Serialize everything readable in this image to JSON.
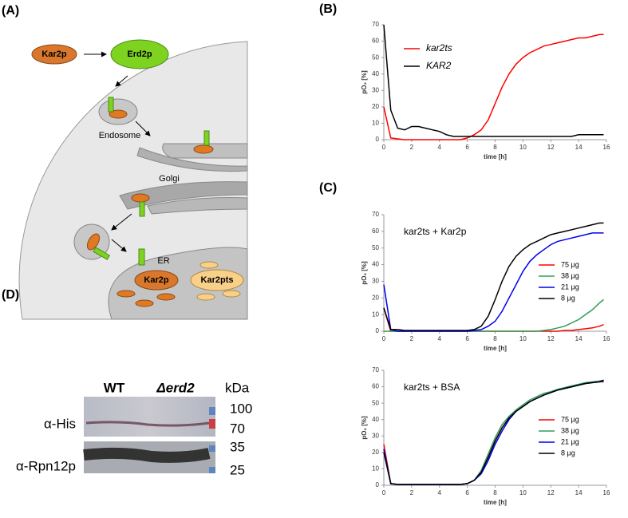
{
  "panels": {
    "a": "(A)",
    "b": "(B)",
    "c": "(C)",
    "d": "(D)"
  },
  "diagram": {
    "kar2p": "Kar2p",
    "erd2p": "Erd2p",
    "endosome": "Endosome",
    "golgi": "Golgi",
    "er": "ER",
    "er_kar2p": "Kar2p",
    "er_kar2pts": "Kar2pts"
  },
  "blot": {
    "lanes": [
      "WT",
      "Δerd2"
    ],
    "unit": "kDa",
    "antibodies": [
      "α-His",
      "α-Rpn12p"
    ],
    "markers": [
      "100",
      "70",
      "35",
      "25"
    ]
  },
  "chart_data": [
    {
      "type": "line",
      "xlabel": "time  [h]",
      "ylabel": "pO₂ [%]",
      "legend": "upper left",
      "x": [
        0,
        0.5,
        1,
        1.5,
        2,
        2.5,
        3,
        3.5,
        4,
        4.5,
        5,
        5.5,
        6,
        6.5,
        7,
        7.5,
        8,
        8.5,
        9,
        9.5,
        10,
        10.5,
        11,
        11.5,
        12,
        12.5,
        13,
        13.5,
        14,
        14.5,
        15,
        15.5,
        15.8
      ],
      "series": [
        {
          "name": "kar2ts",
          "color": "#ff0000",
          "values": [
            20,
            1,
            0.5,
            0,
            0,
            0,
            0,
            0,
            0,
            0,
            0,
            0,
            1,
            3,
            6,
            12,
            22,
            32,
            40,
            46,
            50,
            53,
            55,
            57,
            58,
            59,
            60,
            61,
            62,
            62,
            63,
            64,
            64
          ]
        },
        {
          "name": "KAR2",
          "color": "#000000",
          "values": [
            70,
            18,
            7,
            6,
            8,
            8,
            7,
            6,
            5,
            3,
            2,
            2,
            2,
            2,
            2,
            2,
            2,
            2,
            2,
            2,
            2,
            2,
            2,
            2,
            2,
            2,
            2,
            2,
            3,
            3,
            3,
            3,
            3
          ]
        }
      ],
      "xlim": [
        0,
        16
      ],
      "xticks": [
        0,
        2,
        4,
        6,
        8,
        10,
        12,
        14,
        16
      ],
      "ylim": [
        0,
        70
      ],
      "yticks": [
        0,
        10,
        20,
        30,
        40,
        50,
        60,
        70
      ]
    },
    {
      "type": "line",
      "annotation": "kar2ts + Kar2p",
      "xlabel": "time [h]",
      "ylabel": "pO₂ [%]",
      "legend": "center right",
      "x": [
        0,
        0.5,
        1,
        1.5,
        2,
        2.5,
        3,
        3.5,
        4,
        4.5,
        5,
        5.5,
        6,
        6.5,
        7,
        7.5,
        8,
        8.5,
        9,
        9.5,
        10,
        10.5,
        11,
        11.5,
        12,
        12.5,
        13,
        13.5,
        14,
        14.5,
        15,
        15.5,
        15.8
      ],
      "series": [
        {
          "name": "75 µg",
          "color": "#ff0000",
          "values": [
            14,
            0,
            0,
            0,
            0,
            0,
            0,
            0,
            0,
            0,
            0,
            0,
            0,
            0,
            0,
            0,
            0,
            0,
            0,
            0,
            0,
            0,
            0,
            0,
            0,
            0,
            0.5,
            0.5,
            1,
            1.5,
            2,
            3,
            4
          ]
        },
        {
          "name": "38 µg",
          "color": "#2e9e5b",
          "values": [
            0,
            0,
            0,
            0,
            0,
            0,
            0,
            0,
            0,
            0,
            0,
            0,
            0,
            0,
            0,
            0,
            0,
            0,
            0,
            0,
            0,
            0,
            0,
            0.5,
            1,
            2,
            3,
            5,
            7,
            10,
            13,
            17,
            19
          ]
        },
        {
          "name": "21 µg",
          "color": "#0000ee",
          "values": [
            28,
            1,
            0,
            0,
            0,
            0,
            0,
            0,
            0,
            0,
            0,
            0,
            0,
            0.5,
            1,
            3,
            6,
            12,
            20,
            28,
            36,
            42,
            46,
            49,
            52,
            54,
            55,
            56,
            57,
            58,
            59,
            59,
            59
          ]
        },
        {
          "name": "8 µg",
          "color": "#000000",
          "values": [
            14,
            1,
            1,
            0.5,
            0.5,
            0.5,
            0.5,
            0.5,
            0.5,
            0.5,
            0.5,
            0.5,
            0.5,
            1,
            3,
            9,
            19,
            30,
            39,
            45,
            49,
            52,
            54,
            56,
            58,
            59,
            60,
            61,
            62,
            63,
            64,
            65,
            65
          ]
        }
      ],
      "xlim": [
        0,
        16
      ],
      "xticks": [
        0,
        2,
        4,
        6,
        8,
        10,
        12,
        14,
        16
      ],
      "ylim": [
        0,
        70
      ],
      "yticks": [
        0,
        10,
        20,
        30,
        40,
        50,
        60,
        70
      ]
    },
    {
      "type": "line",
      "annotation": "kar2ts + BSA",
      "xlabel": "time [h]",
      "ylabel": "pO₂ [%]",
      "legend": "center right",
      "x": [
        0,
        0.5,
        1,
        1.5,
        2,
        2.5,
        3,
        3.5,
        4,
        4.5,
        5,
        5.5,
        6,
        6.5,
        7,
        7.5,
        8,
        8.5,
        9,
        9.5,
        10,
        10.5,
        11,
        11.5,
        12,
        12.5,
        13,
        13.5,
        14,
        14.5,
        15,
        15.5,
        15.8
      ],
      "series": [
        {
          "name": "75 µg",
          "color": "#ff0000",
          "values": [
            25,
            1,
            0.5,
            0.5,
            0.5,
            0.5,
            0.5,
            0.5,
            0.5,
            0.5,
            0.5,
            0.5,
            1,
            3,
            8,
            17,
            27,
            35,
            41,
            45,
            48,
            51,
            53,
            55,
            56.5,
            58,
            59,
            60,
            61,
            62,
            62.5,
            63,
            63
          ]
        },
        {
          "name": "38 µg",
          "color": "#2e9e5b",
          "values": [
            22,
            1,
            0.5,
            0.5,
            0.5,
            0.5,
            0.5,
            0.5,
            0.5,
            0.5,
            0.5,
            0.5,
            1,
            3,
            9,
            19,
            29,
            37,
            42,
            46,
            49,
            52,
            54,
            56,
            57,
            58.5,
            59.5,
            60.5,
            61.5,
            62.5,
            63,
            63.5,
            64
          ]
        },
        {
          "name": "21 µg",
          "color": "#0000ee",
          "values": [
            22,
            1,
            0.5,
            0.5,
            0.5,
            0.5,
            0.5,
            0.5,
            0.5,
            0.5,
            0.5,
            0.5,
            1,
            3,
            7,
            15,
            25,
            33,
            40,
            45,
            48,
            51,
            53,
            55,
            56.5,
            58,
            59,
            60,
            61,
            62,
            62.5,
            63,
            63.5
          ]
        },
        {
          "name": "8 µg",
          "color": "#000000",
          "values": [
            20,
            1,
            0.5,
            0.5,
            0.5,
            0.5,
            0.5,
            0.5,
            0.5,
            0.5,
            0.5,
            0.5,
            1,
            3,
            8,
            17,
            27,
            35,
            41,
            45,
            48,
            51,
            53,
            55,
            56.5,
            58,
            59,
            60,
            61,
            62,
            62.5,
            63,
            64
          ]
        }
      ],
      "xlim": [
        0,
        16
      ],
      "xticks": [
        0,
        2,
        4,
        6,
        8,
        10,
        12,
        14,
        16
      ],
      "ylim": [
        0,
        70
      ],
      "yticks": [
        0,
        10,
        20,
        30,
        40,
        50,
        60,
        70
      ]
    }
  ]
}
